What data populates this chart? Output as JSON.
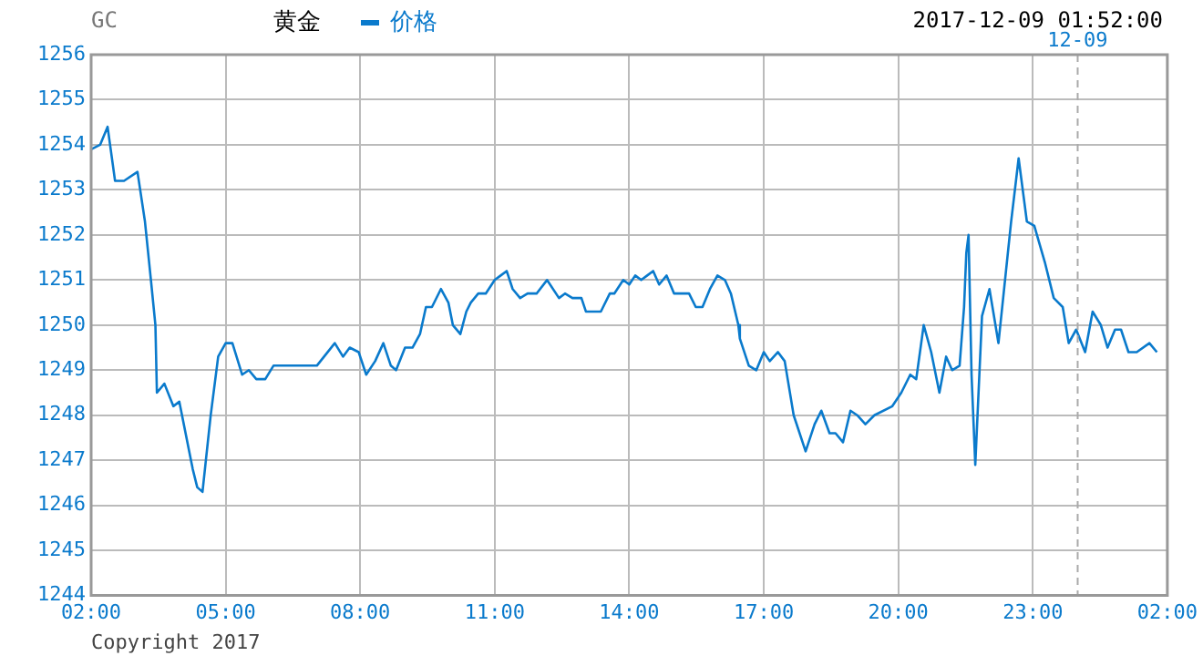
{
  "chart_data": {
    "type": "line",
    "title": "GC",
    "subtitle": "黄金",
    "annotations": [
      "2017-12-09 01:52:00",
      "Copyright 2017"
    ],
    "xlim": [
      "2017-12-08T02:00",
      "2017-12-09T02:00"
    ],
    "xticks": [
      {
        "value": "2017-12-08T02:00",
        "label": "02:00"
      },
      {
        "value": "2017-12-08T05:00",
        "label": "05:00"
      },
      {
        "value": "2017-12-08T08:00",
        "label": "08:00"
      },
      {
        "value": "2017-12-08T11:00",
        "label": "11:00"
      },
      {
        "value": "2017-12-08T14:00",
        "label": "14:00"
      },
      {
        "value": "2017-12-08T17:00",
        "label": "17:00"
      },
      {
        "value": "2017-12-08T20:00",
        "label": "20:00"
      },
      {
        "value": "2017-12-08T23:00",
        "label": "23:00"
      },
      {
        "value": "2017-12-09T02:00",
        "label": "02:00"
      }
    ],
    "ylim": [
      1244,
      1256
    ],
    "yticks": [
      1244,
      1245,
      1246,
      1247,
      1248,
      1249,
      1250,
      1251,
      1252,
      1253,
      1254,
      1255,
      1256
    ],
    "grid": true,
    "legend": "top",
    "marker": "none",
    "line_style": "solid",
    "ref_lines": [
      {
        "axis": "x",
        "value": "2017-12-09",
        "label": "12-09",
        "color": "#aaaaaa",
        "line_style": "dashed"
      }
    ],
    "series": [
      {
        "name": "价格",
        "color": "#0a7acc",
        "x": [
          "2017-12-08T02:00",
          "2017-12-08T02:12",
          "2017-12-08T02:22",
          "2017-12-08T02:32",
          "2017-12-08T02:44",
          "2017-12-08T03:02",
          "2017-12-08T03:12",
          "2017-12-08T03:20",
          "2017-12-08T03:26",
          "2017-12-08T03:28",
          "2017-12-08T03:38",
          "2017-12-08T03:50",
          "2017-12-08T03:58",
          "2017-12-08T04:16",
          "2017-12-08T04:22",
          "2017-12-08T04:29",
          "2017-12-08T04:40",
          "2017-12-08T04:50",
          "2017-12-08T05:00",
          "2017-12-08T05:09",
          "2017-12-08T05:22",
          "2017-12-08T05:31",
          "2017-12-08T05:41",
          "2017-12-08T05:53",
          "2017-12-08T06:04",
          "2017-12-08T07:02",
          "2017-12-08T07:26",
          "2017-12-08T07:37",
          "2017-12-08T07:46",
          "2017-12-08T07:58",
          "2017-12-08T08:08",
          "2017-12-08T08:20",
          "2017-12-08T08:31",
          "2017-12-08T08:41",
          "2017-12-08T08:48",
          "2017-12-08T09:00",
          "2017-12-08T09:10",
          "2017-12-08T09:20",
          "2017-12-08T09:28",
          "2017-12-08T09:36",
          "2017-12-08T09:48",
          "2017-12-08T09:58",
          "2017-12-08T10:04",
          "2017-12-08T10:14",
          "2017-12-08T10:22",
          "2017-12-08T10:28",
          "2017-12-08T10:38",
          "2017-12-08T10:48",
          "2017-12-08T11:00",
          "2017-12-08T11:08",
          "2017-12-08T11:16",
          "2017-12-08T11:24",
          "2017-12-08T11:34",
          "2017-12-08T11:44",
          "2017-12-08T11:56",
          "2017-12-08T12:10",
          "2017-12-08T12:26",
          "2017-12-08T12:34",
          "2017-12-08T12:44",
          "2017-12-08T12:56",
          "2017-12-08T13:02",
          "2017-12-08T13:22",
          "2017-12-08T13:34",
          "2017-12-08T13:40",
          "2017-12-08T13:52",
          "2017-12-08T14:00",
          "2017-12-08T14:08",
          "2017-12-08T14:16",
          "2017-12-08T14:24",
          "2017-12-08T14:32",
          "2017-12-08T14:40",
          "2017-12-08T14:50",
          "2017-12-08T15:00",
          "2017-12-08T15:20",
          "2017-12-08T15:29",
          "2017-12-08T15:38",
          "2017-12-08T15:48",
          "2017-12-08T15:58",
          "2017-12-08T16:08",
          "2017-12-08T16:16",
          "2017-12-08T16:26",
          "2017-12-08T16:28",
          "2017-12-08T16:40",
          "2017-12-08T16:50",
          "2017-12-08T17:00",
          "2017-12-08T17:08",
          "2017-12-08T17:19",
          "2017-12-08T17:28",
          "2017-12-08T17:40",
          "2017-12-08T17:56",
          "2017-12-08T18:08",
          "2017-12-08T18:17",
          "2017-12-08T18:28",
          "2017-12-08T18:36",
          "2017-12-08T18:46",
          "2017-12-08T18:56",
          "2017-12-08T19:05",
          "2017-12-08T19:16",
          "2017-12-08T19:28",
          "2017-12-08T19:52",
          "2017-12-08T20:04",
          "2017-12-08T20:16",
          "2017-12-08T20:24",
          "2017-12-08T20:34",
          "2017-12-08T20:44",
          "2017-12-08T20:55",
          "2017-12-08T21:04",
          "2017-12-08T21:12",
          "2017-12-08T21:22",
          "2017-12-08T21:28",
          "2017-12-08T21:31",
          "2017-12-08T21:34",
          "2017-12-08T21:38",
          "2017-12-08T21:43",
          "2017-12-08T21:46",
          "2017-12-08T21:52",
          "2017-12-08T22:02",
          "2017-12-08T22:14",
          "2017-12-08T22:31",
          "2017-12-08T22:41",
          "2017-12-08T22:52",
          "2017-12-08T23:02",
          "2017-12-08T23:16",
          "2017-12-08T23:28",
          "2017-12-08T23:40",
          "2017-12-08T23:48",
          "2017-12-08T23:58",
          "2017-12-09T00:10",
          "2017-12-09T00:20",
          "2017-12-09T00:31",
          "2017-12-09T00:40",
          "2017-12-09T00:50",
          "2017-12-09T00:58",
          "2017-12-09T01:08",
          "2017-12-09T01:19",
          "2017-12-09T01:36",
          "2017-12-09T01:46"
        ],
        "values": [
          1253.9,
          1254,
          1254.4,
          1253.2,
          1253.2,
          1253.4,
          1252.3,
          1251,
          1250,
          1248.5,
          1248.7,
          1248.2,
          1248.3,
          1246.8,
          1246.4,
          1246.3,
          1248,
          1249.3,
          1249.6,
          1249.6,
          1248.9,
          1249,
          1248.8,
          1248.8,
          1249.1,
          1249.1,
          1249.6,
          1249.3,
          1249.5,
          1249.4,
          1248.9,
          1249.2,
          1249.6,
          1249.1,
          1249,
          1249.5,
          1249.5,
          1249.8,
          1250.4,
          1250.4,
          1250.8,
          1250.5,
          1250,
          1249.8,
          1250.3,
          1250.5,
          1250.7,
          1250.7,
          1251,
          1251.1,
          1251.2,
          1250.8,
          1250.6,
          1250.7,
          1250.7,
          1251,
          1250.6,
          1250.7,
          1250.6,
          1250.6,
          1250.3,
          1250.3,
          1250.7,
          1250.7,
          1251,
          1250.9,
          1251.1,
          1251,
          1251.1,
          1251.2,
          1250.9,
          1251.1,
          1250.7,
          1250.7,
          1250.4,
          1250.4,
          1250.8,
          1251.1,
          1251,
          1250.7,
          1250,
          1249.7,
          1249.1,
          1249,
          1249.4,
          1249.2,
          1249.4,
          1249.2,
          1248,
          1247.2,
          1247.8,
          1248.1,
          1247.6,
          1247.6,
          1247.4,
          1248.1,
          1248,
          1247.8,
          1248,
          1248.2,
          1248.5,
          1248.9,
          1248.8,
          1250,
          1249.4,
          1248.5,
          1249.3,
          1249,
          1249.1,
          1250.4,
          1251.6,
          1252,
          1248.9,
          1246.9,
          1248,
          1250.2,
          1250.8,
          1249.6,
          1252.3,
          1253.7,
          1252.3,
          1252.2,
          1251.4,
          1250.6,
          1250.4,
          1249.6,
          1249.9,
          1249.4,
          1250.3,
          1250,
          1249.5,
          1249.9,
          1249.9,
          1249.4,
          1249.4,
          1249.6,
          1249.4
        ]
      }
    ]
  }
}
